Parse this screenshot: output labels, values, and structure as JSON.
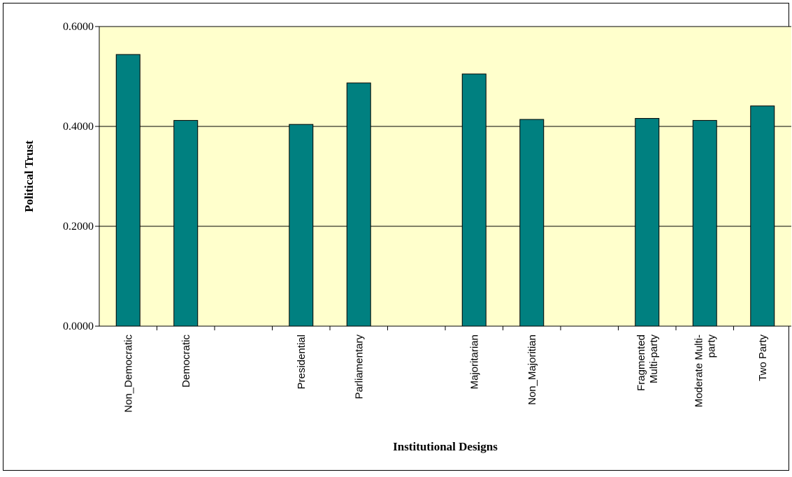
{
  "chart_data": {
    "type": "bar",
    "title": "",
    "xlabel": "Institutional Designs",
    "ylabel": "Political Trust",
    "ylim": [
      0,
      0.6
    ],
    "yticks": [
      "0.0000",
      "0.2000",
      "0.4000",
      "0.6000"
    ],
    "grid": true,
    "legend": "none",
    "colors": {
      "plot_background": "#FFFFCC",
      "bar": "#008080",
      "bar_edge": "#000000"
    },
    "categories": [
      [
        "Non_Democratic"
      ],
      [
        "Democratic"
      ],
      [],
      [
        "Presidential"
      ],
      [
        "Parliamentary"
      ],
      [],
      [
        "Majoritarian"
      ],
      [
        "Non_Majoritian"
      ],
      [],
      [
        "Fragmented",
        "Multi-party"
      ],
      [
        "Moderate Multi-",
        "party"
      ],
      [
        "Two Party"
      ]
    ],
    "values": [
      0.544,
      0.412,
      null,
      0.404,
      0.487,
      null,
      0.505,
      0.414,
      null,
      0.416,
      0.412,
      0.441
    ]
  }
}
